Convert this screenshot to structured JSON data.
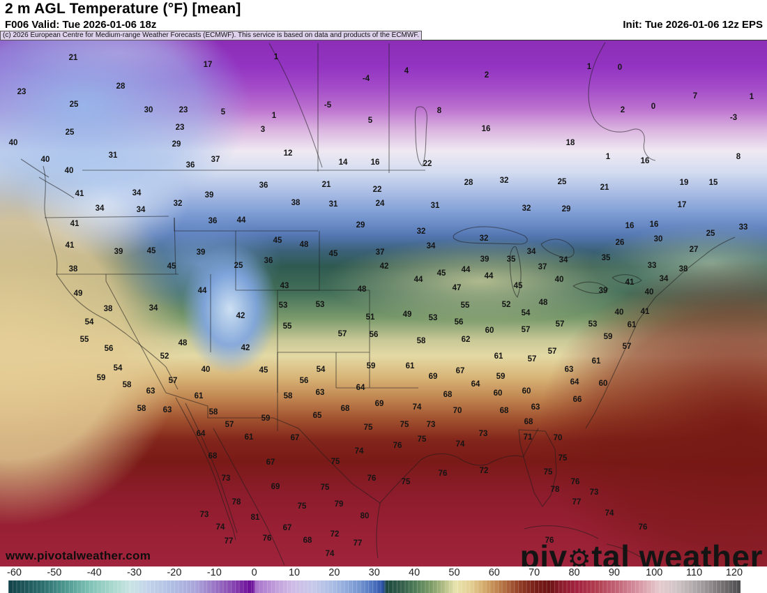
{
  "header": {
    "title": "2 m AGL Temperature (°F) [mean]",
    "valid": "F006 Valid: Tue 2026-01-06 18z",
    "init": "Init: Tue 2026-01-06 12z EPS"
  },
  "attribution": "(c) 2026 European Centre for Medium-range Weather Forecasts (ECMWF). This service is based on data and products of the ECMWF.",
  "watermark": {
    "url": "www.pivotalweather.com",
    "brand_pre": "piv",
    "brand_gear": "⚙",
    "brand_post": "tal weather"
  },
  "colorbar": {
    "unit": "°F",
    "ticks": [
      -60,
      -50,
      -40,
      -30,
      -20,
      -10,
      0,
      10,
      20,
      30,
      40,
      50,
      60,
      70,
      80,
      90,
      100,
      110,
      120
    ],
    "stops": [
      [
        -60,
        "#13424a"
      ],
      [
        -52,
        "#2a6b6b"
      ],
      [
        -46,
        "#4d9890"
      ],
      [
        -40,
        "#7fc2b5"
      ],
      [
        -34,
        "#abd9cf"
      ],
      [
        -30,
        "#c9e4e4"
      ],
      [
        -26,
        "#c3d5ea"
      ],
      [
        -20,
        "#b0c0e4"
      ],
      [
        -14,
        "#aaa5da"
      ],
      [
        -10,
        "#9c7cc8"
      ],
      [
        -5,
        "#8848b2"
      ],
      [
        -1,
        "#6f129b"
      ],
      [
        0,
        "#6f129b"
      ],
      [
        1,
        "#a873cb"
      ],
      [
        6,
        "#c2a0dc"
      ],
      [
        10,
        "#cfbce6"
      ],
      [
        15,
        "#c6c9ea"
      ],
      [
        20,
        "#a9bce4"
      ],
      [
        26,
        "#7898d2"
      ],
      [
        30,
        "#4a70bd"
      ],
      [
        32,
        "#2b52a5"
      ],
      [
        33,
        "#1d4a40"
      ],
      [
        37,
        "#36604c"
      ],
      [
        40,
        "#4f7d58"
      ],
      [
        44,
        "#7e9c68"
      ],
      [
        47,
        "#b0bd85"
      ],
      [
        50,
        "#e9e4ae"
      ],
      [
        54,
        "#e2cc90"
      ],
      [
        57,
        "#d3a96b"
      ],
      [
        60,
        "#c08550"
      ],
      [
        63,
        "#a95f38"
      ],
      [
        66,
        "#8f3a24"
      ],
      [
        70,
        "#771d18"
      ],
      [
        73,
        "#6d1414"
      ],
      [
        76,
        "#8c1c2c"
      ],
      [
        80,
        "#a42440"
      ],
      [
        85,
        "#b24052"
      ],
      [
        90,
        "#c4677a"
      ],
      [
        95,
        "#d795a2"
      ],
      [
        100,
        "#e5cacd"
      ],
      [
        104,
        "#d2c6c8"
      ],
      [
        110,
        "#a6a0a2"
      ],
      [
        115,
        "#7b7577"
      ],
      [
        120,
        "#4b4b4d"
      ]
    ]
  },
  "stations": [
    [
      105,
      82,
      "21"
    ],
    [
      31,
      131,
      "23"
    ],
    [
      173,
      123,
      "28"
    ],
    [
      106,
      149,
      "25"
    ],
    [
      213,
      157,
      "30"
    ],
    [
      263,
      157,
      "23"
    ],
    [
      258,
      182,
      "23"
    ],
    [
      100,
      189,
      "25"
    ],
    [
      253,
      206,
      "29"
    ],
    [
      162,
      222,
      "31"
    ],
    [
      273,
      236,
      "36"
    ],
    [
      19,
      204,
      "40"
    ],
    [
      65,
      228,
      "40"
    ],
    [
      99,
      244,
      "40"
    ],
    [
      114,
      277,
      "41"
    ],
    [
      196,
      276,
      "34"
    ],
    [
      143,
      298,
      "34"
    ],
    [
      202,
      300,
      "34"
    ],
    [
      255,
      291,
      "32"
    ],
    [
      298,
      92,
      "17"
    ],
    [
      396,
      81,
      "1"
    ],
    [
      525,
      112,
      "-4"
    ],
    [
      320,
      160,
      "5"
    ],
    [
      470,
      150,
      "-5"
    ],
    [
      393,
      165,
      "1"
    ],
    [
      531,
      172,
      "5"
    ],
    [
      377,
      185,
      "3"
    ],
    [
      413,
      219,
      "12"
    ],
    [
      309,
      228,
      "37"
    ],
    [
      492,
      232,
      "14"
    ],
    [
      538,
      232,
      "16"
    ],
    [
      378,
      265,
      "36"
    ],
    [
      468,
      264,
      "21"
    ],
    [
      541,
      271,
      "22"
    ],
    [
      300,
      279,
      "39"
    ],
    [
      424,
      290,
      "38"
    ],
    [
      478,
      292,
      "31"
    ],
    [
      545,
      291,
      "24"
    ],
    [
      583,
      101,
      "4"
    ],
    [
      698,
      107,
      "2"
    ],
    [
      630,
      158,
      "8"
    ],
    [
      697,
      184,
      "16"
    ],
    [
      818,
      204,
      "18"
    ],
    [
      613,
      234,
      "22"
    ],
    [
      806,
      260,
      "25"
    ],
    [
      672,
      261,
      "28"
    ],
    [
      723,
      258,
      "32"
    ],
    [
      624,
      294,
      "31"
    ],
    [
      755,
      298,
      "32"
    ],
    [
      812,
      299,
      "29"
    ],
    [
      845,
      95,
      "1"
    ],
    [
      889,
      96,
      "0"
    ],
    [
      893,
      157,
      "2"
    ],
    [
      937,
      152,
      "0"
    ],
    [
      997,
      137,
      "7"
    ],
    [
      1078,
      138,
      "1"
    ],
    [
      1052,
      168,
      "-3"
    ],
    [
      1059,
      224,
      "8"
    ],
    [
      872,
      224,
      "1"
    ],
    [
      925,
      230,
      "16"
    ],
    [
      867,
      268,
      "21"
    ],
    [
      981,
      261,
      "19"
    ],
    [
      1023,
      261,
      "15"
    ],
    [
      978,
      293,
      "17"
    ],
    [
      107,
      320,
      "41"
    ],
    [
      100,
      351,
      "41"
    ],
    [
      170,
      360,
      "39"
    ],
    [
      217,
      359,
      "45"
    ],
    [
      246,
      381,
      "45"
    ],
    [
      105,
      385,
      "38"
    ],
    [
      112,
      420,
      "49"
    ],
    [
      155,
      442,
      "38"
    ],
    [
      220,
      441,
      "34"
    ],
    [
      128,
      461,
      "54"
    ],
    [
      121,
      486,
      "55"
    ],
    [
      156,
      499,
      "56"
    ],
    [
      262,
      491,
      "48"
    ],
    [
      236,
      510,
      "52"
    ],
    [
      169,
      527,
      "54"
    ],
    [
      145,
      541,
      "59"
    ],
    [
      182,
      551,
      "58"
    ],
    [
      248,
      545,
      "57"
    ],
    [
      305,
      316,
      "36"
    ],
    [
      346,
      315,
      "44"
    ],
    [
      398,
      344,
      "45"
    ],
    [
      436,
      350,
      "48"
    ],
    [
      517,
      322,
      "29"
    ],
    [
      288,
      361,
      "39"
    ],
    [
      385,
      373,
      "36"
    ],
    [
      342,
      380,
      "25"
    ],
    [
      478,
      363,
      "45"
    ],
    [
      545,
      361,
      "37"
    ],
    [
      551,
      381,
      "42"
    ],
    [
      408,
      409,
      "43"
    ],
    [
      290,
      416,
      "44"
    ],
    [
      519,
      414,
      "48"
    ],
    [
      406,
      437,
      "53"
    ],
    [
      459,
      436,
      "53"
    ],
    [
      345,
      452,
      "42"
    ],
    [
      531,
      454,
      "51"
    ],
    [
      412,
      467,
      "55"
    ],
    [
      491,
      478,
      "57"
    ],
    [
      536,
      479,
      "56"
    ],
    [
      352,
      498,
      "42"
    ],
    [
      295,
      529,
      "40"
    ],
    [
      378,
      530,
      "45"
    ],
    [
      460,
      529,
      "54"
    ],
    [
      532,
      524,
      "59"
    ],
    [
      436,
      545,
      "56"
    ],
    [
      517,
      555,
      "64"
    ],
    [
      604,
      331,
      "32"
    ],
    [
      618,
      352,
      "34"
    ],
    [
      694,
      341,
      "32"
    ],
    [
      762,
      360,
      "34"
    ],
    [
      695,
      371,
      "39"
    ],
    [
      733,
      371,
      "35"
    ],
    [
      808,
      372,
      "34"
    ],
    [
      778,
      382,
      "37"
    ],
    [
      668,
      386,
      "44"
    ],
    [
      633,
      391,
      "45"
    ],
    [
      600,
      400,
      "44"
    ],
    [
      701,
      395,
      "44"
    ],
    [
      802,
      400,
      "40"
    ],
    [
      743,
      409,
      "45"
    ],
    [
      655,
      412,
      "47"
    ],
    [
      779,
      433,
      "48"
    ],
    [
      667,
      437,
      "55"
    ],
    [
      726,
      436,
      "52"
    ],
    [
      754,
      448,
      "54"
    ],
    [
      584,
      450,
      "49"
    ],
    [
      621,
      455,
      "53"
    ],
    [
      658,
      461,
      "56"
    ],
    [
      803,
      464,
      "57"
    ],
    [
      754,
      472,
      "57"
    ],
    [
      702,
      473,
      "60"
    ],
    [
      604,
      488,
      "58"
    ],
    [
      668,
      486,
      "62"
    ],
    [
      792,
      503,
      "57"
    ],
    [
      715,
      510,
      "61"
    ],
    [
      763,
      514,
      "57"
    ],
    [
      588,
      524,
      "61"
    ],
    [
      816,
      529,
      "63"
    ],
    [
      621,
      539,
      "69"
    ],
    [
      660,
      531,
      "67"
    ],
    [
      718,
      539,
      "59"
    ],
    [
      682,
      550,
      "64"
    ],
    [
      824,
      547,
      "64"
    ],
    [
      903,
      323,
      "16"
    ],
    [
      938,
      321,
      "16"
    ],
    [
      1066,
      325,
      "33"
    ],
    [
      1019,
      334,
      "25"
    ],
    [
      889,
      347,
      "26"
    ],
    [
      944,
      342,
      "30"
    ],
    [
      995,
      357,
      "27"
    ],
    [
      869,
      369,
      "35"
    ],
    [
      935,
      380,
      "33"
    ],
    [
      980,
      385,
      "38"
    ],
    [
      952,
      399,
      "34"
    ],
    [
      903,
      404,
      "41"
    ],
    [
      865,
      416,
      "39"
    ],
    [
      931,
      418,
      "40"
    ],
    [
      888,
      447,
      "40"
    ],
    [
      925,
      446,
      "41"
    ],
    [
      850,
      464,
      "53"
    ],
    [
      906,
      465,
      "61"
    ],
    [
      872,
      482,
      "59"
    ],
    [
      899,
      496,
      "57"
    ],
    [
      855,
      517,
      "61"
    ],
    [
      865,
      549,
      "60"
    ],
    [
      216,
      560,
      "63"
    ],
    [
      203,
      585,
      "58"
    ],
    [
      240,
      587,
      "63"
    ],
    [
      285,
      567,
      "61"
    ],
    [
      306,
      590,
      "58"
    ],
    [
      413,
      567,
      "58"
    ],
    [
      459,
      562,
      "63"
    ],
    [
      544,
      578,
      "69"
    ],
    [
      495,
      585,
      "68"
    ],
    [
      329,
      608,
      "57"
    ],
    [
      381,
      599,
      "59"
    ],
    [
      455,
      595,
      "65"
    ],
    [
      357,
      626,
      "61"
    ],
    [
      423,
      627,
      "67"
    ],
    [
      528,
      612,
      "75"
    ],
    [
      515,
      646,
      "74"
    ],
    [
      305,
      653,
      "68"
    ],
    [
      388,
      662,
      "67"
    ],
    [
      481,
      661,
      "75"
    ],
    [
      324,
      685,
      "73"
    ],
    [
      533,
      685,
      "76"
    ],
    [
      395,
      697,
      "69"
    ],
    [
      466,
      698,
      "75"
    ],
    [
      339,
      719,
      "78"
    ],
    [
      433,
      725,
      "75"
    ],
    [
      486,
      722,
      "79"
    ],
    [
      293,
      737,
      "73"
    ],
    [
      366,
      741,
      "81"
    ],
    [
      523,
      739,
      "80"
    ],
    [
      412,
      756,
      "67"
    ],
    [
      480,
      765,
      "72"
    ],
    [
      383,
      771,
      "76"
    ],
    [
      441,
      774,
      "68"
    ],
    [
      513,
      778,
      "77"
    ],
    [
      473,
      793,
      "74"
    ],
    [
      316,
      755,
      "74"
    ],
    [
      328,
      775,
      "77"
    ],
    [
      288,
      621,
      "64"
    ],
    [
      642,
      565,
      "68"
    ],
    [
      714,
      563,
      "60"
    ],
    [
      755,
      560,
      "60"
    ],
    [
      828,
      572,
      "66"
    ],
    [
      598,
      583,
      "74"
    ],
    [
      656,
      588,
      "70"
    ],
    [
      768,
      583,
      "63"
    ],
    [
      723,
      588,
      "68"
    ],
    [
      580,
      608,
      "75"
    ],
    [
      618,
      608,
      "73"
    ],
    [
      758,
      604,
      "68"
    ],
    [
      693,
      621,
      "73"
    ],
    [
      757,
      626,
      "71"
    ],
    [
      800,
      627,
      "70"
    ],
    [
      605,
      629,
      "75"
    ],
    [
      570,
      638,
      "76"
    ],
    [
      660,
      636,
      "74"
    ],
    [
      807,
      656,
      "75"
    ],
    [
      635,
      678,
      "76"
    ],
    [
      694,
      674,
      "72"
    ],
    [
      786,
      676,
      "75"
    ],
    [
      582,
      690,
      "75"
    ],
    [
      825,
      690,
      "76"
    ],
    [
      796,
      701,
      "78"
    ],
    [
      827,
      719,
      "77"
    ],
    [
      788,
      774,
      "76"
    ],
    [
      852,
      705,
      "73"
    ],
    [
      874,
      735,
      "74"
    ],
    [
      922,
      755,
      "76"
    ]
  ]
}
